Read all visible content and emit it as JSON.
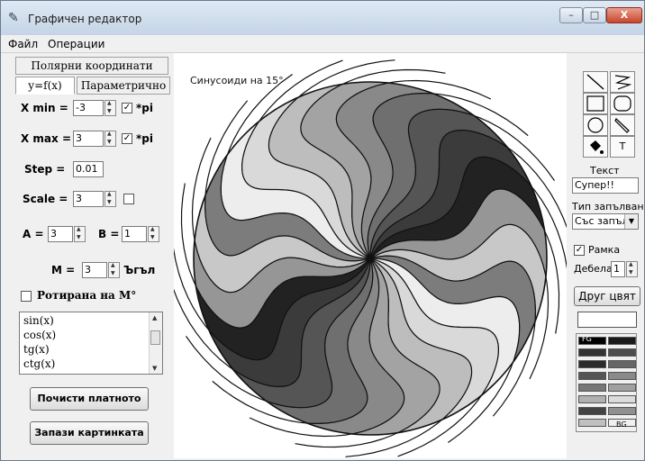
{
  "window": {
    "title": "Графичен редактор",
    "min_label": "–",
    "max_label": "□",
    "close_label": "X"
  },
  "menu": {
    "file": "Файл",
    "ops": "Операции"
  },
  "tabs": {
    "polar": "Полярни координати",
    "yfx": "y=f(x)",
    "param": "Параметрично"
  },
  "form": {
    "xmin_label": "X min  =",
    "xmin_value": "-3",
    "xmin_pi_checked": "✓",
    "pi_label": "*pi",
    "xmax_label": "X max =",
    "xmax_value": "3",
    "xmax_pi_checked": "✓",
    "step_label": "Step  =",
    "step_value": "0.01",
    "scale_label": "Scale =",
    "scale_value": "3",
    "a_label": "A =",
    "a_value": "3",
    "b_label": "B =",
    "b_value": "1",
    "m_label": "M =",
    "m_value": "3",
    "angle_label": "Ъгъл",
    "rot_label": "Ротирана на M°"
  },
  "functions": [
    "sin(x)",
    "cos(x)",
    "tg(x)",
    "ctg(x)"
  ],
  "buttons": {
    "clear": "Почисти платното",
    "save": "Запази картинката",
    "color": "Друг цвят"
  },
  "canvas": {
    "label": "Синусоиди на 15°"
  },
  "tools": {
    "text_tool": "T"
  },
  "right": {
    "text_label": "Текст",
    "text_value": "Супер!!",
    "fill_label": "Тип запълване",
    "fill_value": "Със запъл",
    "frame_label": "Рамка",
    "frame_checked": "✓",
    "thick_label": "Дебела",
    "thick_value": "1",
    "fg_label": "FG",
    "bg_label": "BG"
  },
  "colors": {
    "sectors": [
      "#ededed",
      "#d9d9d9",
      "#bdbdbd",
      "#a3a3a3",
      "#898989",
      "#6f6f6f",
      "#555555",
      "#3b3b3b",
      "#222222",
      "#969696",
      "#c8c8c8",
      "#7c7c7c"
    ],
    "palette": [
      "#000000",
      "#1a1a1a",
      "#333333",
      "#4d4d4d",
      "#2b2b2b",
      "#666666",
      "#555555",
      "#8a8a8a",
      "#777777",
      "#a0a0a0",
      "#b0b0b0",
      "#dcdcdc",
      "#444444",
      "#909090",
      "#c0c0c0",
      "#f0f0f0"
    ]
  }
}
